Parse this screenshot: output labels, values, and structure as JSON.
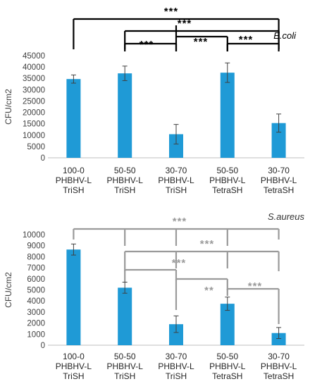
{
  "chart_data": [
    {
      "type": "bar",
      "title": "E.coli",
      "ylabel": "CFU/cm2",
      "ylim": [
        0,
        45000
      ],
      "yticks": [
        0,
        5000,
        10000,
        15000,
        20000,
        25000,
        30000,
        35000,
        40000,
        45000
      ],
      "grid": false,
      "categories": [
        [
          "100-0",
          "PHBHV-L",
          "TriSH"
        ],
        [
          "50-50",
          "PHBHV-L",
          "TriSH"
        ],
        [
          "30-70",
          "PHBHV-L",
          "TriSH"
        ],
        [
          "50-50",
          "PHBHV-L",
          "TetraSH"
        ],
        [
          "30-70",
          "PHBHV-L",
          "TetraSH"
        ]
      ],
      "values": [
        34700,
        37200,
        10400,
        37500,
        15300
      ],
      "errors": [
        1800,
        3200,
        4300,
        4300,
        4000
      ],
      "bar_color": "#1f9ad6",
      "significance": [
        {
          "from": 0,
          "to": 4,
          "label": "***"
        },
        {
          "from": 1,
          "to": 4,
          "label": "***"
        },
        {
          "from": 1,
          "to": 2,
          "label": "***"
        },
        {
          "from": 2,
          "to": 3,
          "label": "***"
        },
        {
          "from": 3,
          "to": 4,
          "label": "***"
        }
      ],
      "bracket_color": "#000000"
    },
    {
      "type": "bar",
      "title": "S.aureus",
      "ylabel": "CFU/cm2",
      "ylim": [
        0,
        10000
      ],
      "yticks": [
        0,
        1000,
        2000,
        3000,
        4000,
        5000,
        6000,
        7000,
        8000,
        9000,
        10000
      ],
      "grid": false,
      "categories": [
        [
          "100-0",
          "PHBHV-L",
          "TriSH"
        ],
        [
          "50-50",
          "PHBHV-L",
          "TriSH"
        ],
        [
          "30-70",
          "PHBHV-L",
          "TriSH"
        ],
        [
          "50-50",
          "PHBHV-L",
          "TetraSH"
        ],
        [
          "30-70",
          "PHBHV-L",
          "TetraSH"
        ]
      ],
      "values": [
        8650,
        5200,
        1900,
        3750,
        1100
      ],
      "errors": [
        500,
        500,
        750,
        600,
        500
      ],
      "bar_color": "#1f9ad6",
      "significance": [
        {
          "from": 0,
          "to": 4,
          "label": "***"
        },
        {
          "from": 1,
          "to": 4,
          "label": "***"
        },
        {
          "from": 1,
          "to": 2,
          "label": "***"
        },
        {
          "from": 2,
          "to": 3,
          "label": "**"
        },
        {
          "from": 3,
          "to": 4,
          "label": "***"
        }
      ],
      "bracket_color": "#9a9a9a"
    }
  ]
}
